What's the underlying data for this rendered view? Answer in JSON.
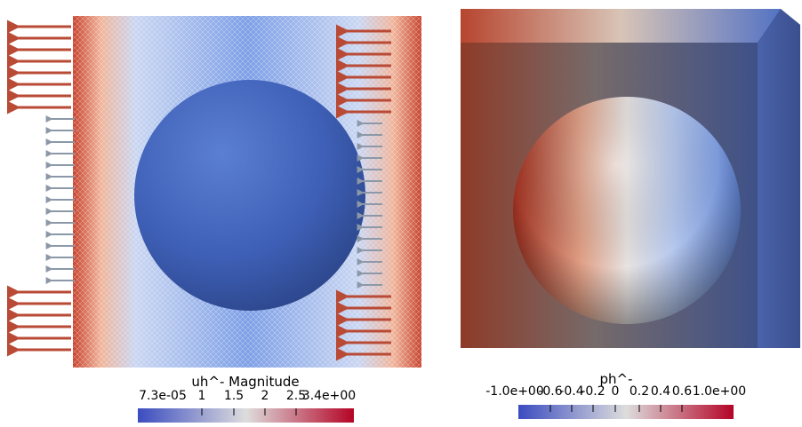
{
  "left_view": {
    "colorbar": {
      "title": "uh^- Magnitude",
      "ticks": [
        "7.3e-05",
        "1",
        "1.5",
        "2",
        "2.5",
        "3.4e+00"
      ],
      "colors": [
        "#3b4cc0",
        "#dddddd",
        "#b40426"
      ]
    }
  },
  "right_view": {
    "colorbar": {
      "title": "ph^-",
      "ticks": [
        "-1.0e+00",
        "-0.6",
        "-0.4",
        "-0.2",
        "0",
        "0.2",
        "0.4",
        "0.6",
        "1.0e+00"
      ],
      "colors": [
        "#3b4cc0",
        "#dddddd",
        "#b40426"
      ]
    }
  }
}
